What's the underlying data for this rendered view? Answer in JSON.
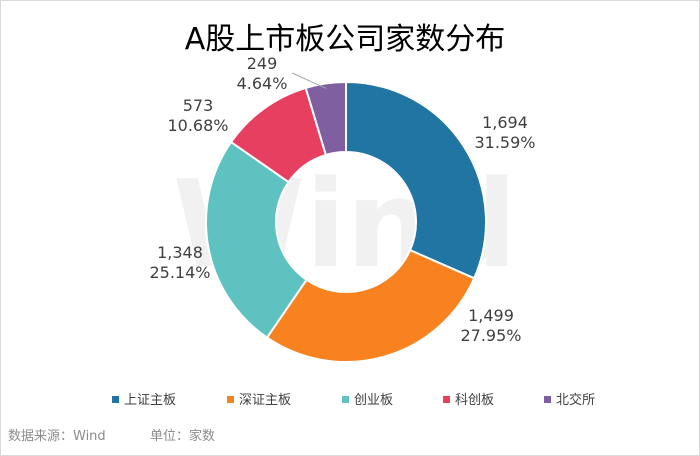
{
  "chart_data": {
    "type": "pie",
    "donut": true,
    "title": "A股上市板公司家数分布",
    "categories": [
      "上证主板",
      "深证主板",
      "创业板",
      "科创板",
      "北交所"
    ],
    "values": [
      1694,
      1499,
      1348,
      573,
      249
    ],
    "value_labels": [
      "1,694",
      "1,499",
      "1,348",
      "573",
      "249"
    ],
    "percent_labels": [
      "31.59%",
      "27.95%",
      "25.14%",
      "10.68%",
      "4.64%"
    ],
    "colors": [
      "#2075A3",
      "#F7821F",
      "#5EC2C1",
      "#E63F5F",
      "#7F5FA0"
    ],
    "legend_position": "bottom"
  },
  "footer": {
    "source": "数据来源：Wind",
    "unit": "单位：家数"
  },
  "watermark": "Wind"
}
